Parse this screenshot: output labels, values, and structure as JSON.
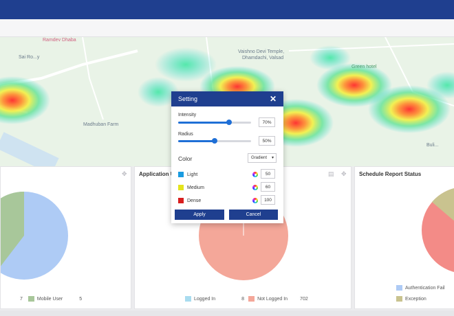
{
  "map": {
    "labels": {
      "ramdev": "Ramdev Dhaba",
      "sai": "Sai Ro...y",
      "vaishno": "Vaishno Devi Temple,",
      "dhamdachi": "Dhamdachi, Valsad",
      "green": "Green hotel",
      "madhuban": "Madhuban Farm",
      "right_edge": "Buli..."
    }
  },
  "panels": {
    "left": {
      "legend_value_prev": "7",
      "legend_label": "Mobile User",
      "legend_value": "5"
    },
    "middle": {
      "title": "Application U",
      "legend": [
        {
          "label": "Logged In",
          "value": "8"
        },
        {
          "label": "Not Logged In",
          "value": "702"
        }
      ]
    },
    "right": {
      "title": "Schedule Report Status",
      "legend": [
        {
          "label": "Authentication Fail"
        },
        {
          "label": "Exception"
        }
      ]
    }
  },
  "dialog": {
    "title": "Setting",
    "intensity": {
      "label": "Intensity",
      "value": "70%",
      "fraction": 0.7
    },
    "radius": {
      "label": "Radius",
      "value": "50%",
      "fraction": 0.5
    },
    "color_label": "Color",
    "color_mode": "Gradient",
    "colors": [
      {
        "label": "Light",
        "value": "50",
        "color": "#1a9be0"
      },
      {
        "label": "Medium",
        "value": "60",
        "color": "#e4e41c"
      },
      {
        "label": "Dense",
        "value": "100",
        "color": "#d81e1e"
      }
    ],
    "apply_label": "Apply",
    "cancel_label": "Cancel"
  },
  "colors": {
    "brand": "#1f3f8f",
    "pie_blue": "#aecbf5",
    "pie_green": "#a8c79a",
    "pie_salmon": "#f4a799",
    "pie_cyan": "#a9dcef",
    "pie_red": "#f38b87",
    "pie_khaki": "#c9c38f"
  }
}
